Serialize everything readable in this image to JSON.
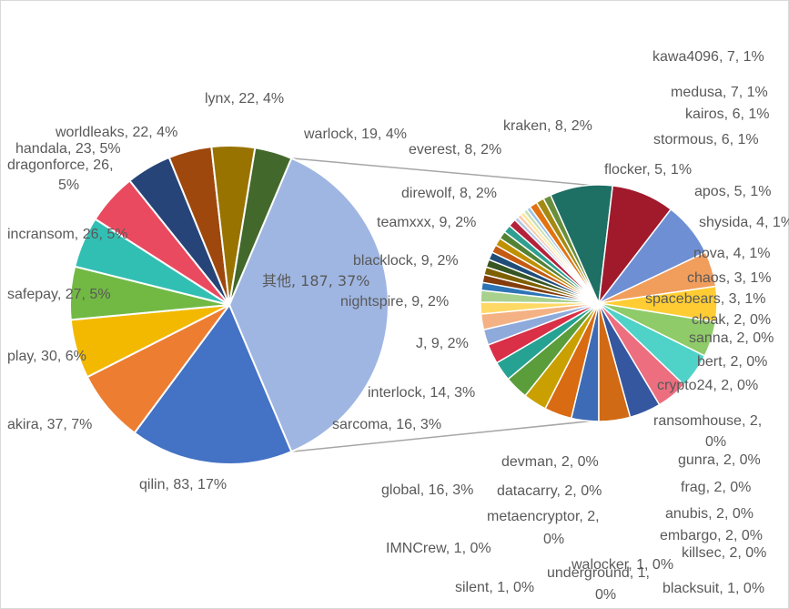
{
  "chart_data": {
    "type": "pie",
    "title": "",
    "main": [
      {
        "name": "其他",
        "value": 187,
        "percent": "37%",
        "color": "#9fb6e2"
      },
      {
        "name": "qilin",
        "value": 83,
        "percent": "17%",
        "color": "#4472c4"
      },
      {
        "name": "akira",
        "value": 37,
        "percent": "7%",
        "color": "#ed7d31"
      },
      {
        "name": "play",
        "value": 30,
        "percent": "6%",
        "color": "#f2b900"
      },
      {
        "name": "safepay",
        "value": 27,
        "percent": "5%",
        "color": "#72b944"
      },
      {
        "name": "incransom",
        "value": 26,
        "percent": "5%",
        "color": "#32bfb3"
      },
      {
        "name": "dragonforce",
        "value": 26,
        "percent": "5%",
        "color": "#e94a5f"
      },
      {
        "name": "handala",
        "value": 23,
        "percent": "5%",
        "color": "#264478"
      },
      {
        "name": "worldleaks",
        "value": 22,
        "percent": "4%",
        "color": "#9e480e"
      },
      {
        "name": "lynx",
        "value": 22,
        "percent": "4%",
        "color": "#997300"
      },
      {
        "name": "warlock",
        "value": 19,
        "percent": "4%",
        "color": "#43682b"
      }
    ],
    "other": [
      {
        "name": "kawa4096",
        "value": 7,
        "percent": "1%",
        "color": "#3d6bb5"
      },
      {
        "name": "medusa",
        "value": 7,
        "percent": "1%",
        "color": "#d96b13"
      },
      {
        "name": "kairos",
        "value": 6,
        "percent": "1%",
        "color": "#c9a000"
      },
      {
        "name": "stormous",
        "value": 6,
        "percent": "1%",
        "color": "#5a9d3a"
      },
      {
        "name": "flocker",
        "value": 5,
        "percent": "1%",
        "color": "#26a292"
      },
      {
        "name": "apos",
        "value": 5,
        "percent": "1%",
        "color": "#d92f47"
      },
      {
        "name": "shysida",
        "value": 4,
        "percent": "1%",
        "color": "#8eaadb"
      },
      {
        "name": "nova",
        "value": 4,
        "percent": "1%",
        "color": "#f4b183"
      },
      {
        "name": "chaos",
        "value": 3,
        "percent": "1%",
        "color": "#ffd966"
      },
      {
        "name": "spacebears",
        "value": 3,
        "percent": "1%",
        "color": "#a9d18e"
      },
      {
        "name": "cloak",
        "value": 2,
        "percent": "0%",
        "color": "#2e75b6"
      },
      {
        "name": "sanna",
        "value": 2,
        "percent": "0%",
        "color": "#843c0c"
      },
      {
        "name": "bert",
        "value": 2,
        "percent": "0%",
        "color": "#7f6000"
      },
      {
        "name": "crypto24",
        "value": 2,
        "percent": "0%",
        "color": "#375623"
      },
      {
        "name": "ransomhouse",
        "value": 2,
        "percent": "0%",
        "color": "#1f4e79"
      },
      {
        "name": "gunra",
        "value": 2,
        "percent": "0%",
        "color": "#c55a11"
      },
      {
        "name": "frag",
        "value": 2,
        "percent": "0%",
        "color": "#bf9000"
      },
      {
        "name": "anubis",
        "value": 2,
        "percent": "0%",
        "color": "#548235"
      },
      {
        "name": "embargo",
        "value": 2,
        "percent": "0%",
        "color": "#2e9f91"
      },
      {
        "name": "killsec",
        "value": 2,
        "percent": "0%",
        "color": "#b4213a"
      },
      {
        "name": "blacksuit",
        "value": 1,
        "percent": "0%",
        "color": "#b4c7e7"
      },
      {
        "name": "walocker",
        "value": 1,
        "percent": "0%",
        "color": "#f8cbad"
      },
      {
        "name": "underground",
        "value": 1,
        "percent": "0%",
        "color": "#ffe699"
      },
      {
        "name": "silent",
        "value": 1,
        "percent": "0%",
        "color": "#c5e0b4"
      },
      {
        "name": "IMNCrew",
        "value": 1,
        "percent": "0%",
        "color": "#9dc3e6"
      },
      {
        "name": "metaencryptor",
        "value": 2,
        "percent": "0%",
        "color": "#e2730f"
      },
      {
        "name": "datacarry",
        "value": 2,
        "percent": "0%",
        "color": "#a48a12"
      },
      {
        "name": "devman",
        "value": 2,
        "percent": "0%",
        "color": "#6a8f3c"
      },
      {
        "name": "global",
        "value": 16,
        "percent": "3%",
        "color": "#1e6f64"
      },
      {
        "name": "sarcoma",
        "value": 16,
        "percent": "3%",
        "color": "#a01a2c"
      },
      {
        "name": "interlock",
        "value": 14,
        "percent": "3%",
        "color": "#6e8fd4"
      },
      {
        "name": "J",
        "value": 9,
        "percent": "2%",
        "color": "#f19d5c"
      },
      {
        "name": "nightspire",
        "value": 9,
        "percent": "2%",
        "color": "#ffcd33"
      },
      {
        "name": "blacklock",
        "value": 9,
        "percent": "2%",
        "color": "#8fcb69"
      },
      {
        "name": "teamxxx",
        "value": 9,
        "percent": "2%",
        "color": "#4fd2c7"
      },
      {
        "name": "direwolf",
        "value": 8,
        "percent": "2%",
        "color": "#ec6e7f"
      },
      {
        "name": "everest",
        "value": 8,
        "percent": "2%",
        "color": "#3557a0"
      },
      {
        "name": "kraken",
        "value": 8,
        "percent": "2%",
        "color": "#d06a14"
      }
    ]
  }
}
